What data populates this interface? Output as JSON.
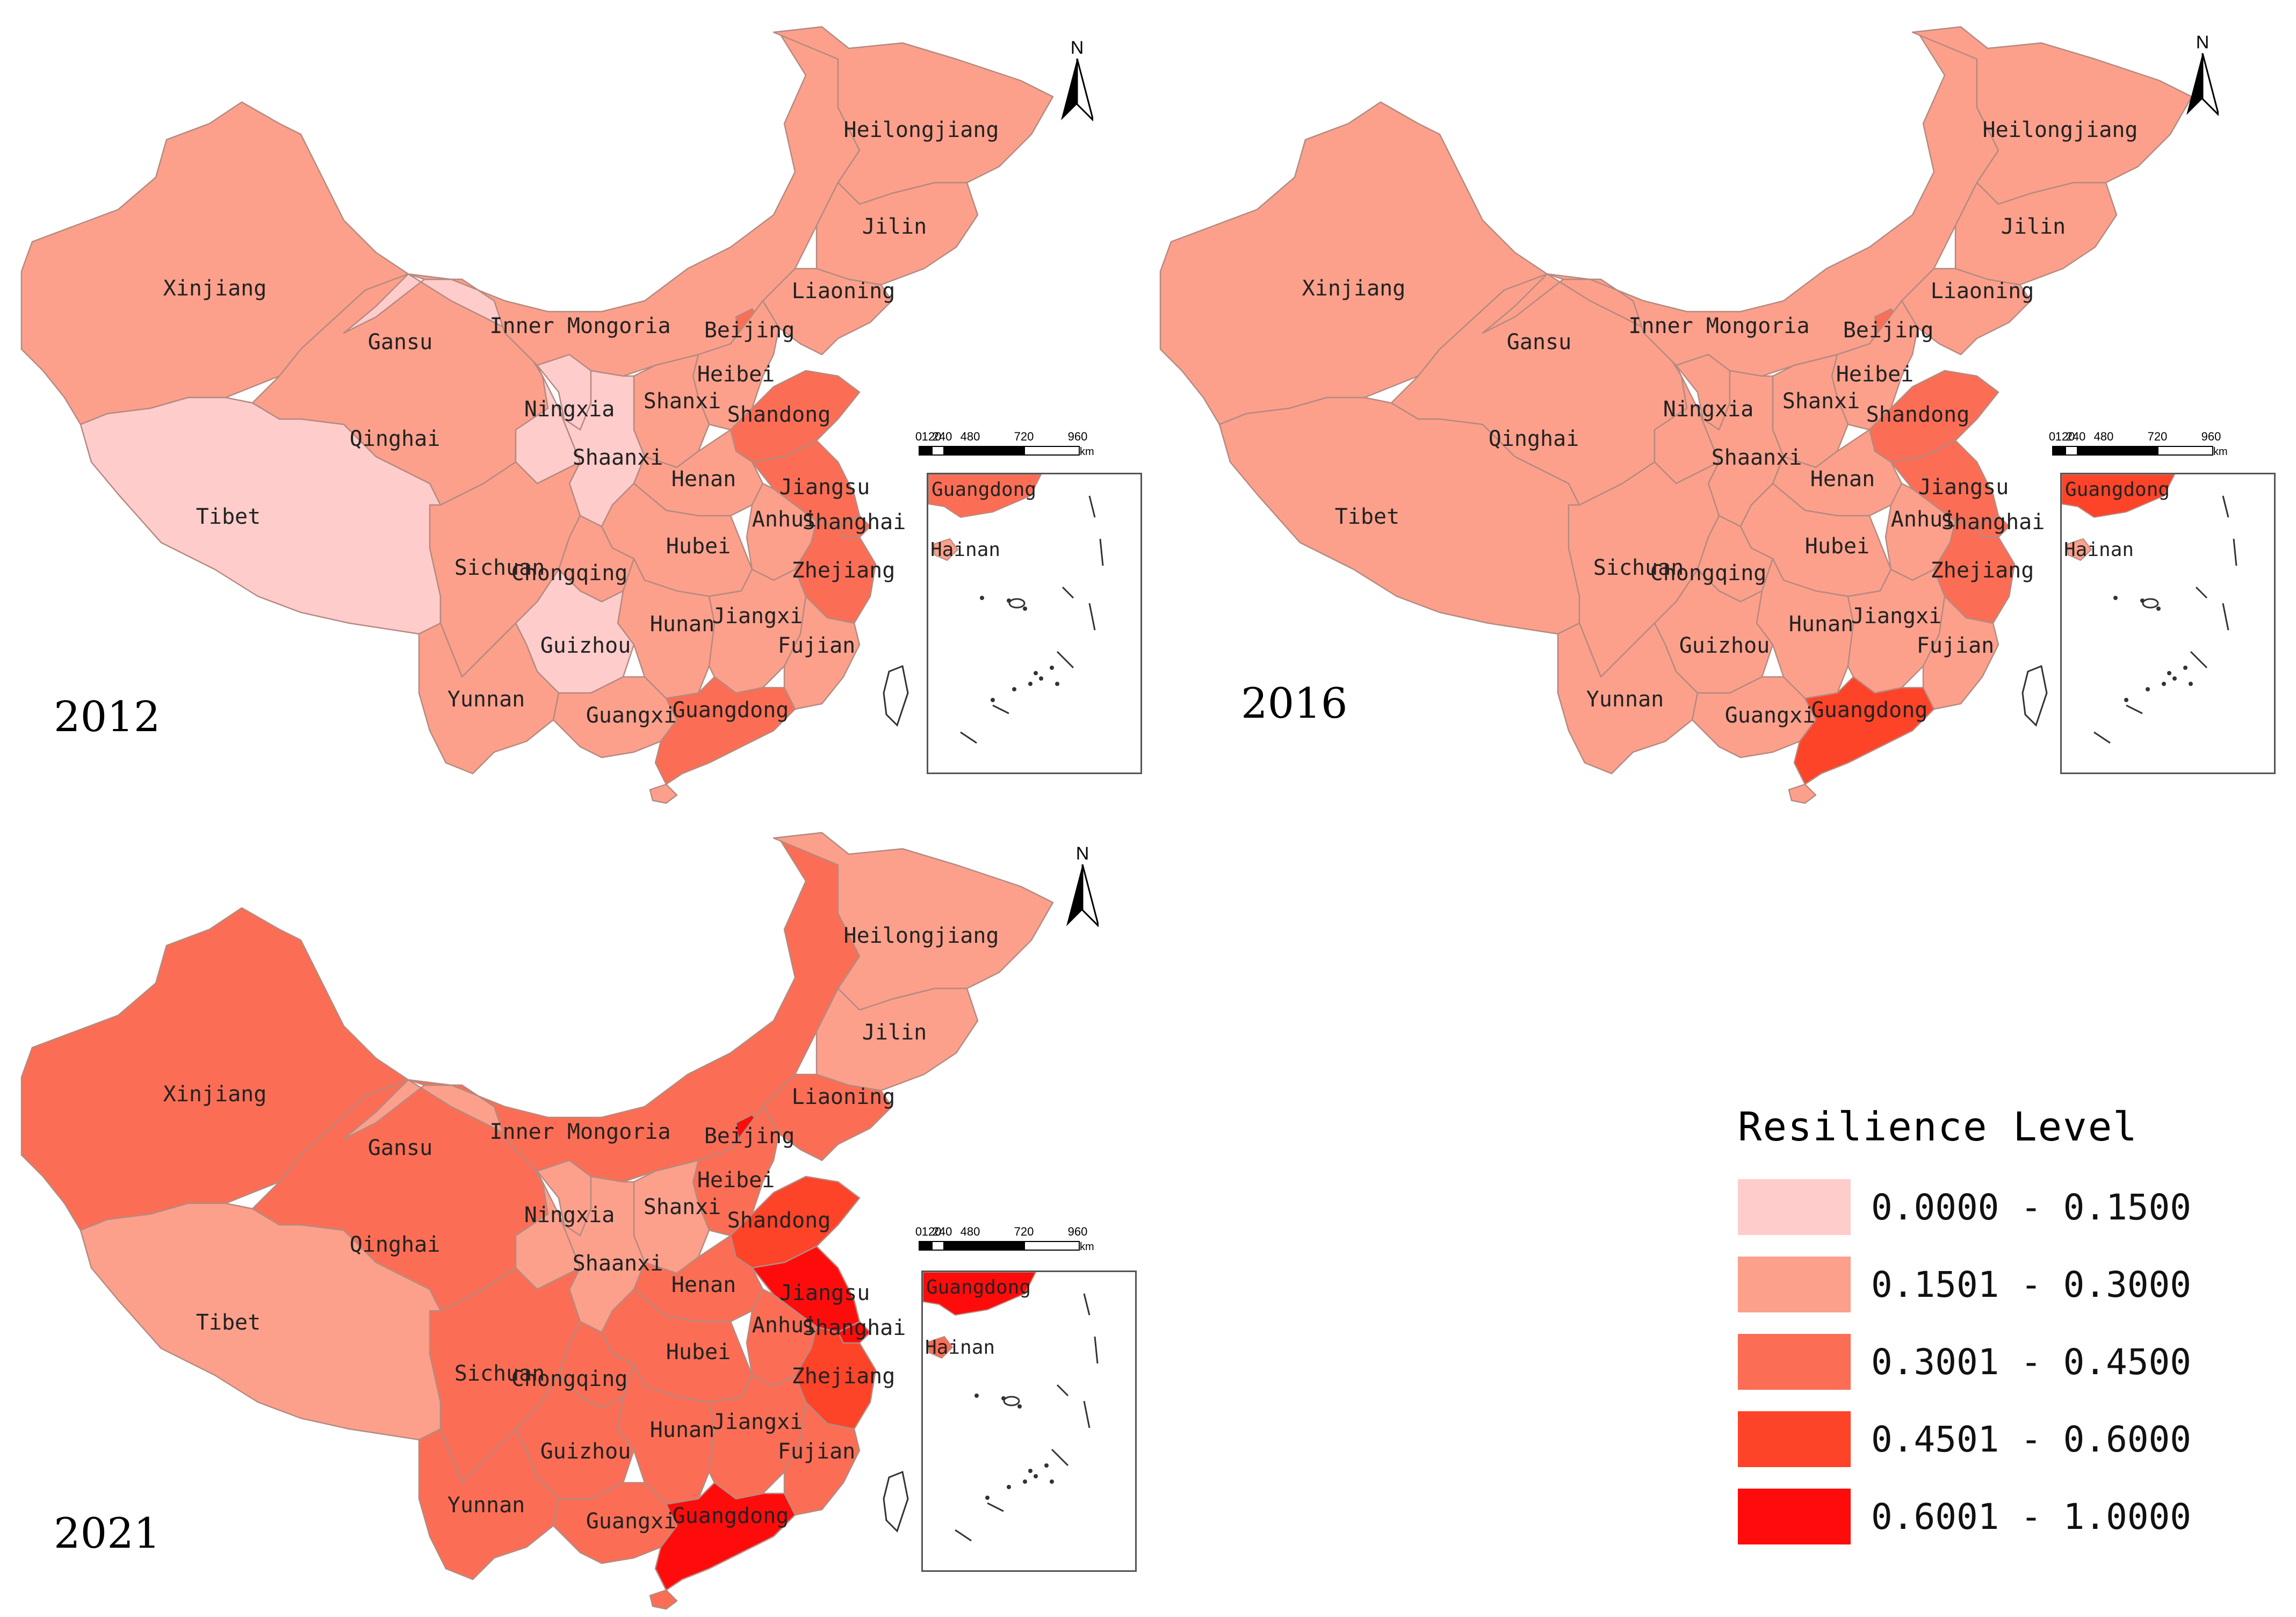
{
  "legend": {
    "title": "Resilience Level",
    "classes": [
      {
        "label": "0.0000 - 0.1500",
        "color": "#ffcccc"
      },
      {
        "label": "0.1501 - 0.3000",
        "color": "#fca08c"
      },
      {
        "label": "0.3001 - 0.4500",
        "color": "#fb6e55"
      },
      {
        "label": "0.4501 - 0.6000",
        "color": "#fd4328"
      },
      {
        "label": "0.6001 - 1.0000",
        "color": "#fe0c0c"
      }
    ]
  },
  "north_label": "N",
  "scale": {
    "ticks": [
      "0",
      "120",
      "240",
      "480",
      "720",
      "960"
    ],
    "unit": "km"
  },
  "insets": {
    "labels": [
      "Guangdong",
      "Hainan"
    ]
  },
  "maps": [
    {
      "year": "2012",
      "classes": {
        "Xinjiang": 1,
        "Tibet": 0,
        "Qinghai": 1,
        "Gansu": 0,
        "Inner Mongoria": 1,
        "Heilongjiang": 1,
        "Jilin": 1,
        "Liaoning": 1,
        "Beijing": 2,
        "Heibei": 1,
        "Shanxi": 1,
        "Shandong": 2,
        "Ningxia": 0,
        "Shaanxi": 0,
        "Henan": 1,
        "Jiangsu": 2,
        "Anhui": 1,
        "Shanghai": 2,
        "Sichuan": 1,
        "Chongqing": 1,
        "Hubei": 1,
        "Zhejiang": 2,
        "Hunan": 1,
        "Jiangxi": 1,
        "Fujian": 1,
        "Guizhou": 0,
        "Yunnan": 1,
        "Guangxi": 1,
        "Guangdong": 2,
        "Hainan": 1
      }
    },
    {
      "year": "2016",
      "classes": {
        "Xinjiang": 1,
        "Tibet": 1,
        "Qinghai": 1,
        "Gansu": 1,
        "Inner Mongoria": 1,
        "Heilongjiang": 1,
        "Jilin": 1,
        "Liaoning": 1,
        "Beijing": 2,
        "Heibei": 1,
        "Shanxi": 1,
        "Shandong": 2,
        "Ningxia": 1,
        "Shaanxi": 1,
        "Henan": 1,
        "Jiangsu": 2,
        "Anhui": 1,
        "Shanghai": 2,
        "Sichuan": 1,
        "Chongqing": 1,
        "Hubei": 1,
        "Zhejiang": 2,
        "Hunan": 1,
        "Jiangxi": 1,
        "Fujian": 1,
        "Guizhou": 1,
        "Yunnan": 1,
        "Guangxi": 1,
        "Guangdong": 3,
        "Hainan": 1
      }
    },
    {
      "year": "2021",
      "classes": {
        "Xinjiang": 2,
        "Tibet": 1,
        "Qinghai": 2,
        "Gansu": 1,
        "Inner Mongoria": 2,
        "Heilongjiang": 1,
        "Jilin": 1,
        "Liaoning": 2,
        "Beijing": 4,
        "Heibei": 2,
        "Shanxi": 1,
        "Shandong": 3,
        "Ningxia": 1,
        "Shaanxi": 1,
        "Henan": 2,
        "Jiangsu": 4,
        "Anhui": 2,
        "Shanghai": 4,
        "Sichuan": 2,
        "Chongqing": 2,
        "Hubei": 2,
        "Zhejiang": 3,
        "Hunan": 2,
        "Jiangxi": 2,
        "Fujian": 2,
        "Guizhou": 2,
        "Yunnan": 2,
        "Guangxi": 2,
        "Guangdong": 4,
        "Hainan": 2
      }
    }
  ]
}
